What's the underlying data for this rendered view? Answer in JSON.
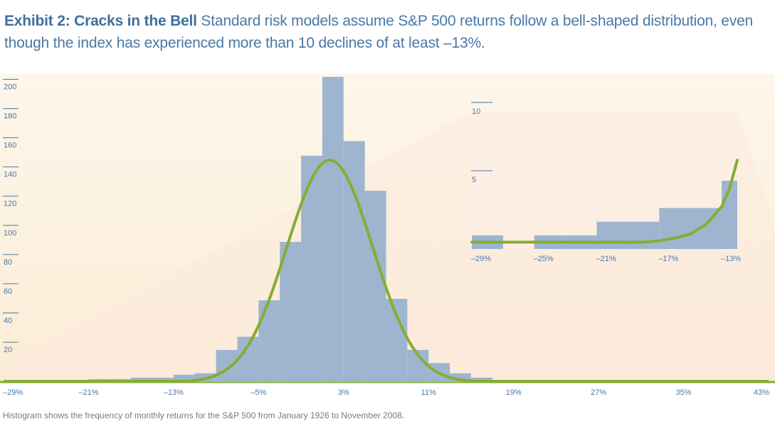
{
  "header": {
    "lead": "Exhibit 2: Cracks in the Bell",
    "text": "Standard risk models assume S&P 500 returns follow a bell-shaped distribution, even though the index has experienced more than 10 declines of at least –13%."
  },
  "footnote": "Histogram shows the frequency of monthly returns for the S&P 500 from January 1926 to November 2008.",
  "colors": {
    "bar": "#9eb5cf",
    "curve": "#86ad33",
    "background": "#fdf2e0",
    "inset_background": "#fdeee4",
    "text": "#4a78a6"
  },
  "chart_data": [
    {
      "type": "bar",
      "title": "",
      "xlabel": "",
      "ylabel": "",
      "x_tick_labels": [
        "–29%",
        "–21%",
        "–13%",
        "–5%",
        "3%",
        "11%",
        "19%",
        "27%",
        "35%",
        "43%"
      ],
      "x_ticks": [
        -29,
        -21,
        -13,
        -5,
        3,
        11,
        19,
        27,
        35,
        43
      ],
      "xlim": [
        -29,
        43
      ],
      "y_tick_labels": [
        "20",
        "40",
        "60",
        "80",
        "100",
        "120",
        "140",
        "160",
        "180",
        "200"
      ],
      "y_ticks": [
        20,
        40,
        60,
        80,
        100,
        120,
        140,
        160,
        180,
        200
      ],
      "ylim": [
        0,
        210
      ],
      "bin_width": 2,
      "series": [
        {
          "bins": [
            {
              "x0": -29,
              "x1": -27,
              "value": 1
            },
            {
              "x0": -27,
              "x1": -25,
              "value": 0
            },
            {
              "x0": -25,
              "x1": -23,
              "value": 1
            },
            {
              "x0": -23,
              "x1": -21,
              "value": 1
            },
            {
              "x0": -21,
              "x1": -19,
              "value": 2
            },
            {
              "x0": -19,
              "x1": -17,
              "value": 2
            },
            {
              "x0": -17,
              "x1": -15,
              "value": 3
            },
            {
              "x0": -15,
              "x1": -13,
              "value": 3
            },
            {
              "x0": -13,
              "x1": -11,
              "value": 5
            },
            {
              "x0": -11,
              "x1": -9,
              "value": 6
            },
            {
              "x0": -9,
              "x1": -7,
              "value": 22
            },
            {
              "x0": -7,
              "x1": -5,
              "value": 31
            },
            {
              "x0": -5,
              "x1": -3,
              "value": 56
            },
            {
              "x0": -3,
              "x1": -1,
              "value": 96
            },
            {
              "x0": -1,
              "x1": 1,
              "value": 155
            },
            {
              "x0": 1,
              "x1": 3,
              "value": 209
            },
            {
              "x0": 3,
              "x1": 5,
              "value": 165
            },
            {
              "x0": 5,
              "x1": 7,
              "value": 131
            },
            {
              "x0": 7,
              "x1": 9,
              "value": 57
            },
            {
              "x0": 9,
              "x1": 11,
              "value": 22
            },
            {
              "x0": 11,
              "x1": 13,
              "value": 13
            },
            {
              "x0": 13,
              "x1": 15,
              "value": 6
            },
            {
              "x0": 15,
              "x1": 17,
              "value": 3
            },
            {
              "x0": 17,
              "x1": 19,
              "value": 1
            },
            {
              "x0": 19,
              "x1": 21,
              "value": 1
            },
            {
              "x0": 21,
              "x1": 23,
              "value": 1
            },
            {
              "x0": 23,
              "x1": 25,
              "value": 1
            },
            {
              "x0": 25,
              "x1": 27,
              "value": 1
            },
            {
              "x0": 27,
              "x1": 29,
              "value": 1
            },
            {
              "x0": 39,
              "x1": 41,
              "value": 1
            }
          ]
        },
        {
          "type": "normal-curve",
          "mean": 1.7,
          "sd": 4.05,
          "peak": 152
        }
      ]
    },
    {
      "type": "bar",
      "title": "",
      "x_tick_labels": [
        "–29%",
        "–25%",
        "–21%",
        "–17%",
        "–13%"
      ],
      "x_ticks": [
        -29,
        -25,
        -21,
        -17,
        -13
      ],
      "xlim": [
        -29,
        -12
      ],
      "y_tick_labels": [
        "5",
        "10"
      ],
      "y_ticks": [
        5,
        10
      ],
      "ylim": [
        0,
        10
      ],
      "series": [
        {
          "bins": [
            {
              "x0": -29,
              "x1": -27,
              "value": 1
            },
            {
              "x0": -27,
              "x1": -25,
              "value": 0
            },
            {
              "x0": -25,
              "x1": -23,
              "value": 1
            },
            {
              "x0": -23,
              "x1": -21,
              "value": 1
            },
            {
              "x0": -21,
              "x1": -19,
              "value": 2
            },
            {
              "x0": -19,
              "x1": -17,
              "value": 2
            },
            {
              "x0": -17,
              "x1": -15,
              "value": 3
            },
            {
              "x0": -15,
              "x1": -13,
              "value": 3
            },
            {
              "x0": -13,
              "x1": -12,
              "value": 5
            }
          ]
        },
        {
          "type": "normal-curve",
          "points": [
            [
              -29,
              0.5
            ],
            [
              -21,
              0.5
            ],
            [
              -18,
              0.5
            ],
            [
              -17,
              0.6
            ],
            [
              -16,
              0.8
            ],
            [
              -15,
              1.1
            ],
            [
              -14,
              1.8
            ],
            [
              -13,
              3.1
            ],
            [
              -12.5,
              4.4
            ],
            [
              -12,
              6.5
            ]
          ]
        }
      ]
    }
  ]
}
